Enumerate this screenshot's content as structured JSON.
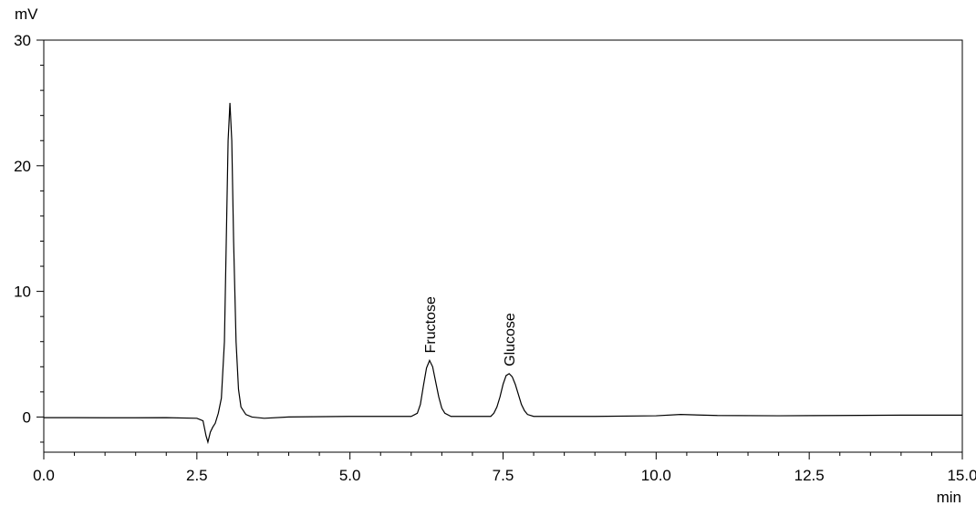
{
  "chart_data": {
    "type": "line",
    "x_label": "min",
    "y_label": "mV",
    "x": [
      0,
      0.5,
      1,
      1.5,
      2,
      2.5,
      2.6,
      2.65,
      2.68,
      2.72,
      2.76,
      2.8,
      2.85,
      2.9,
      2.95,
      2.98,
      3.01,
      3.04,
      3.07,
      3.1,
      3.14,
      3.18,
      3.22,
      3.3,
      3.4,
      3.6,
      4,
      5,
      6,
      6.1,
      6.15,
      6.2,
      6.25,
      6.3,
      6.35,
      6.4,
      6.45,
      6.5,
      6.55,
      6.65,
      7.3,
      7.35,
      7.4,
      7.45,
      7.5,
      7.55,
      7.6,
      7.65,
      7.7,
      7.75,
      7.8,
      7.85,
      7.9,
      8,
      9,
      10,
      10.4,
      11,
      12,
      13,
      14,
      15
    ],
    "series": [
      {
        "name": "signal",
        "color": "#000000",
        "values": [
          -0.05,
          -0.05,
          -0.06,
          -0.06,
          -0.05,
          -0.1,
          -0.3,
          -1.5,
          -2.0,
          -1.2,
          -0.8,
          -0.5,
          0.3,
          1.5,
          6,
          14,
          22,
          25,
          22,
          14,
          6,
          2.2,
          0.8,
          0.2,
          0.0,
          -0.1,
          0.0,
          0.05,
          0.05,
          0.3,
          1.0,
          2.5,
          3.9,
          4.5,
          4.0,
          2.8,
          1.6,
          0.7,
          0.3,
          0.05,
          0.05,
          0.3,
          0.8,
          1.6,
          2.6,
          3.3,
          3.45,
          3.2,
          2.6,
          1.8,
          1.0,
          0.5,
          0.2,
          0.05,
          0.05,
          0.1,
          0.2,
          0.12,
          0.1,
          0.12,
          0.15,
          0.15
        ]
      }
    ],
    "xlim": [
      0,
      15
    ],
    "ylim": [
      -2.8,
      30
    ],
    "xticks": [
      {
        "value": 0,
        "label": "0.0"
      },
      2.5,
      {
        "value": 5,
        "label": "5.0"
      },
      7.5,
      {
        "value": 10,
        "label": "10.0"
      },
      12.5,
      {
        "value": 15,
        "label": "15.0"
      }
    ],
    "yticks": [
      0,
      10,
      20,
      30
    ],
    "x_minor_ticks": [
      0.5,
      1,
      1.5,
      2,
      3,
      3.5,
      4,
      4.5,
      5.5,
      6,
      6.5,
      7,
      8,
      8.5,
      9,
      9.5,
      10.5,
      11,
      11.5,
      12,
      13,
      13.5,
      14,
      14.5
    ],
    "y_minor_ticks": [
      -2,
      2,
      4,
      6,
      8,
      12,
      14,
      16,
      18,
      22,
      24,
      26,
      28
    ],
    "annotations": [
      {
        "text": "Fructose",
        "x": 6.3,
        "y": 4.5
      },
      {
        "text": "Glucose",
        "x": 7.6,
        "y": 3.45
      }
    ]
  }
}
